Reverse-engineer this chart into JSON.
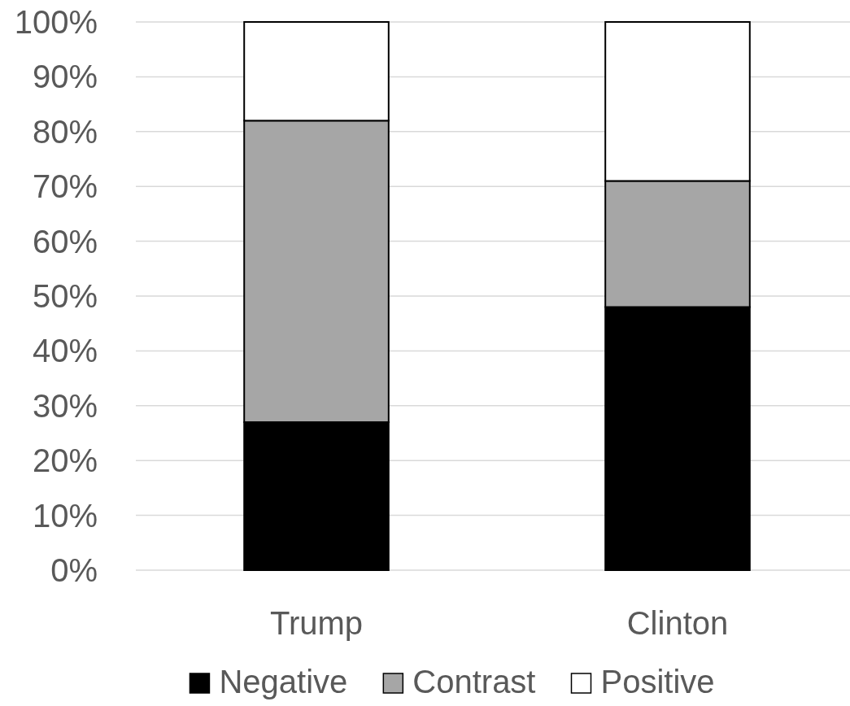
{
  "chart_data": {
    "type": "bar",
    "categories": [
      "Trump",
      "Clinton"
    ],
    "series": [
      {
        "name": "Negative",
        "color": "#000000",
        "values": [
          27,
          48
        ]
      },
      {
        "name": "Contrast",
        "color": "#a6a6a6",
        "values": [
          55,
          23
        ]
      },
      {
        "name": "Positive",
        "color": "#ffffff",
        "values": [
          18,
          29
        ]
      }
    ],
    "stacked": true,
    "ylim": [
      0,
      100
    ],
    "yticks": [
      {
        "value": 0,
        "label": "0%"
      },
      {
        "value": 10,
        "label": "10%"
      },
      {
        "value": 20,
        "label": "20%"
      },
      {
        "value": 30,
        "label": "30%"
      },
      {
        "value": 40,
        "label": "40%"
      },
      {
        "value": 50,
        "label": "50%"
      },
      {
        "value": 60,
        "label": "60%"
      },
      {
        "value": 70,
        "label": "70%"
      },
      {
        "value": 80,
        "label": "80%"
      },
      {
        "value": 90,
        "label": "90%"
      },
      {
        "value": 100,
        "label": "100%"
      }
    ],
    "grid": "y",
    "legend": "bottom"
  }
}
